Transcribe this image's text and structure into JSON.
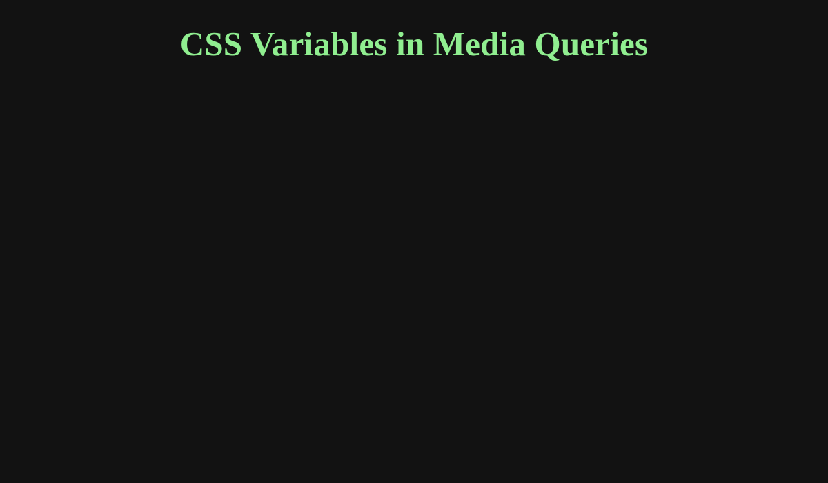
{
  "page": {
    "title": "CSS Variables in Media Queries",
    "title_color": "#90ee90",
    "background_color": "#121212"
  }
}
